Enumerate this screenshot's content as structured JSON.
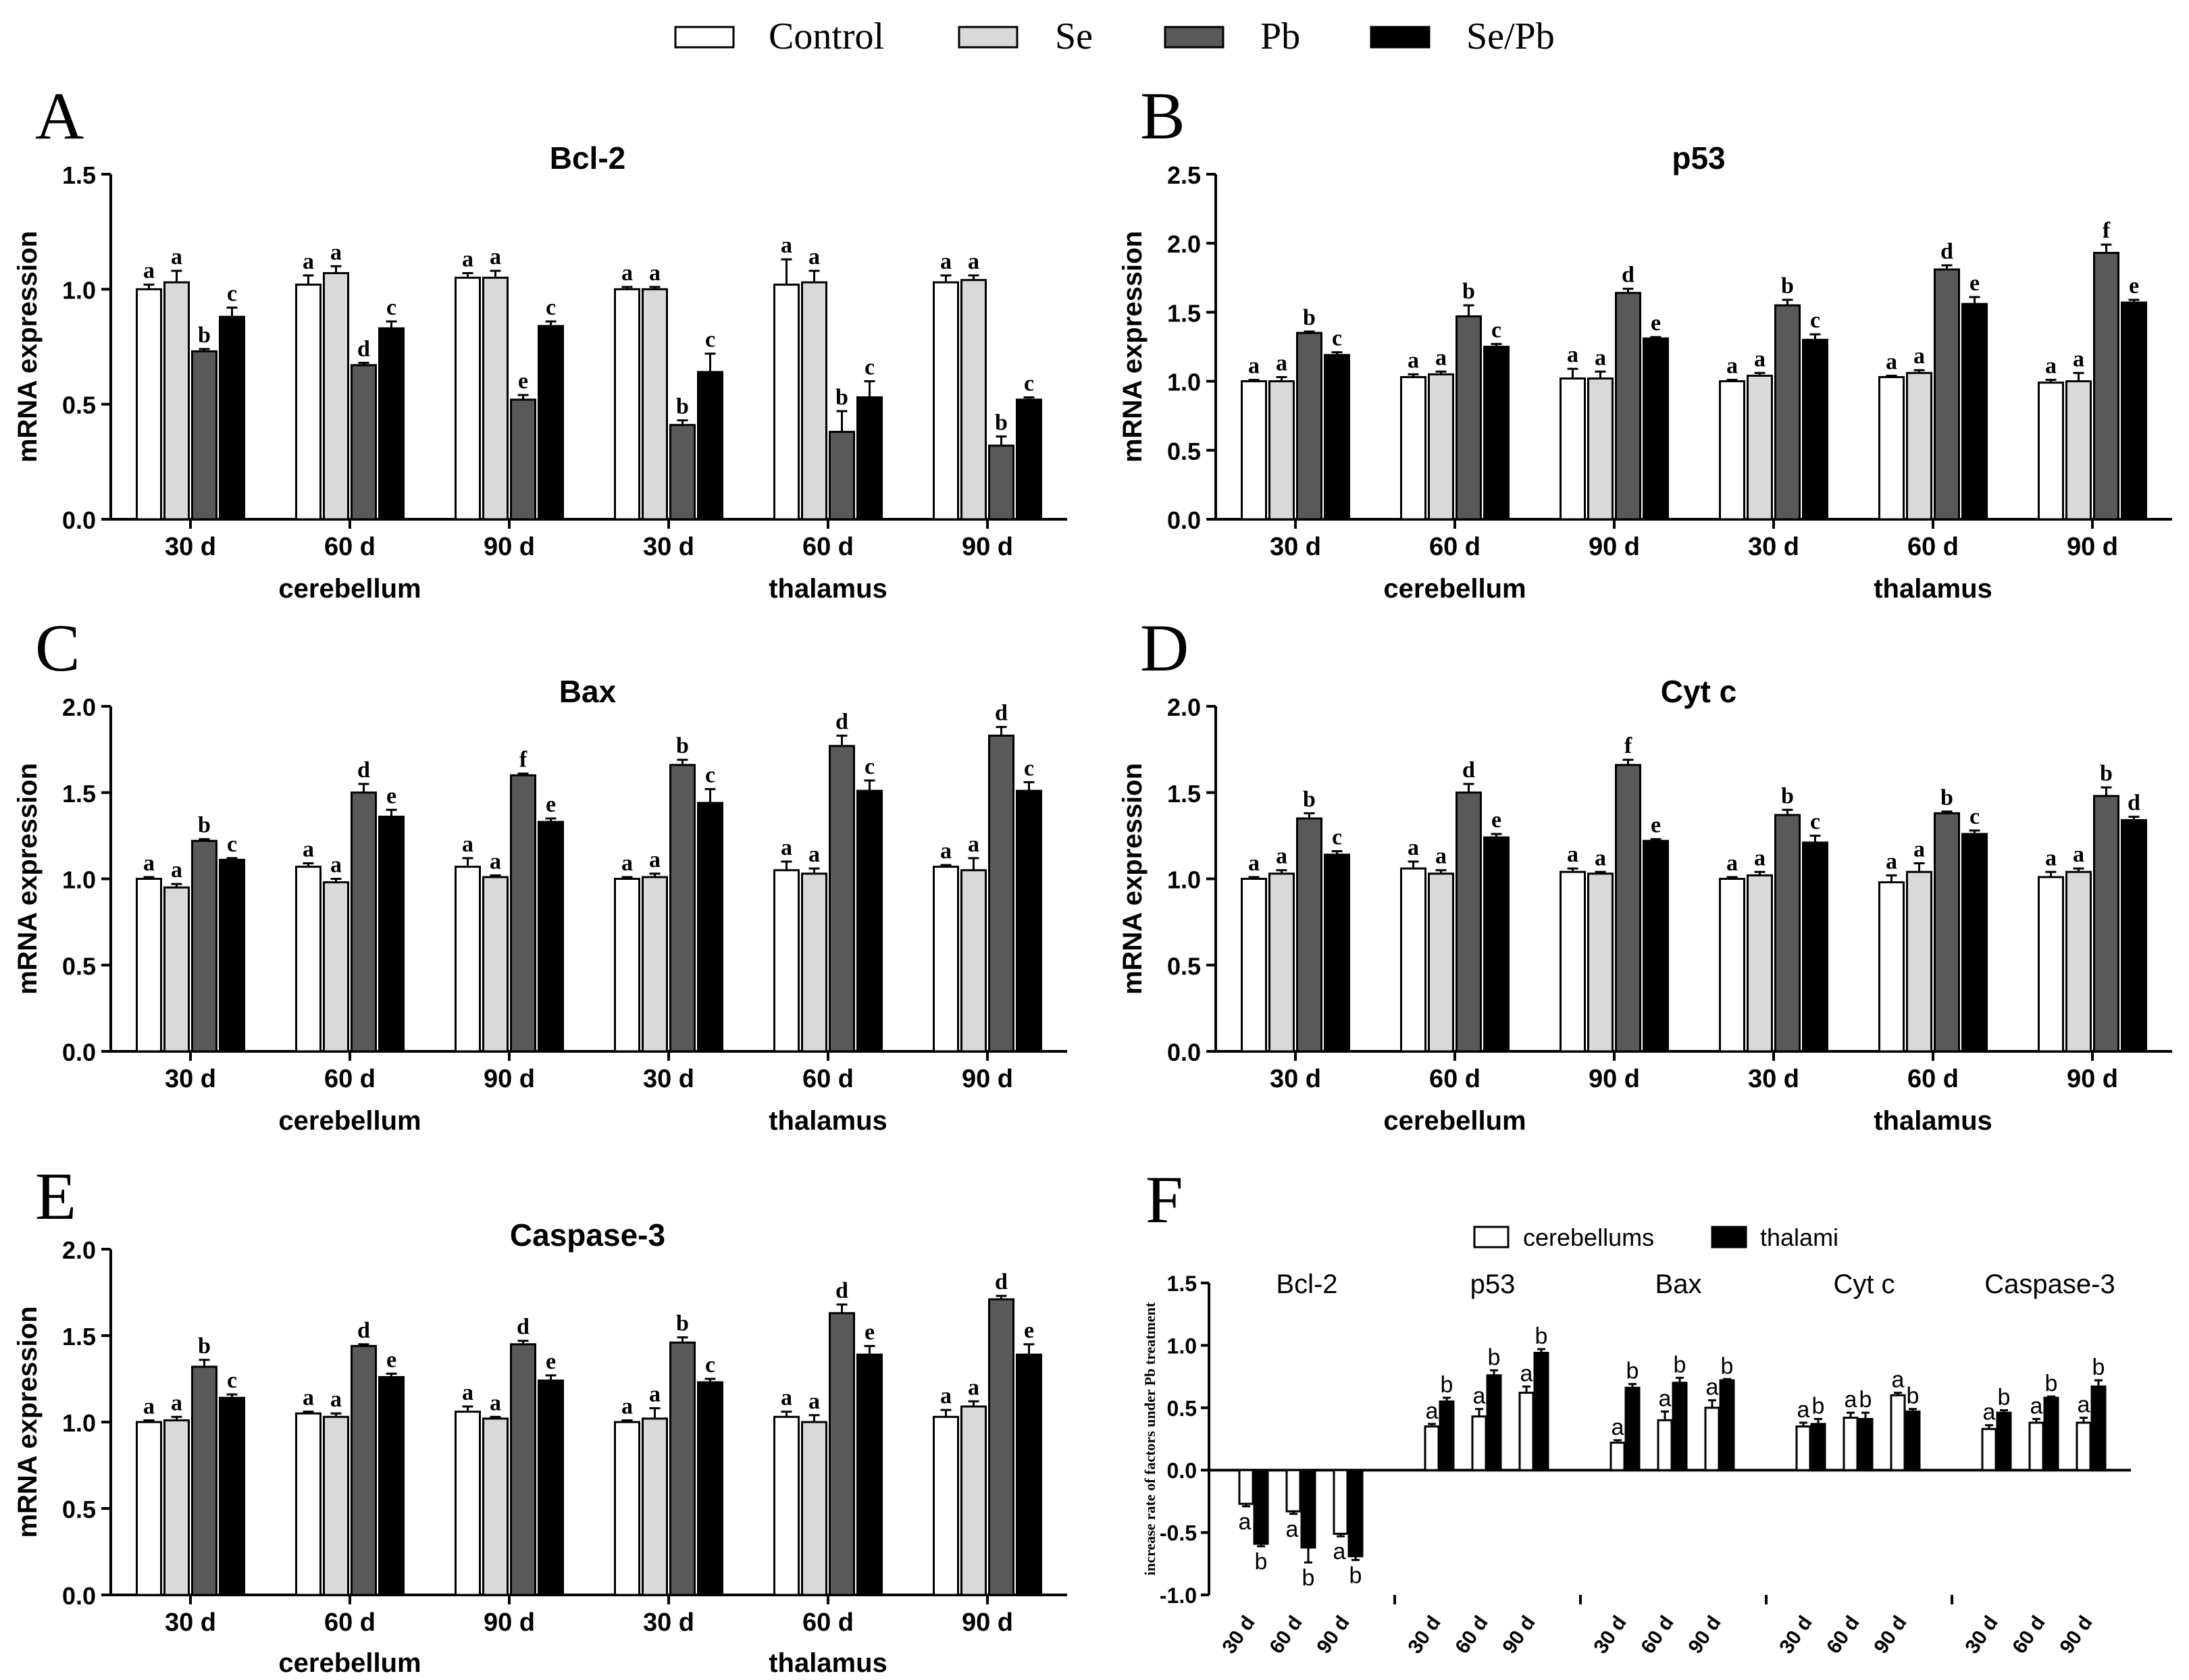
{
  "legend": {
    "items": [
      {
        "label": "Control",
        "color": "#ffffff"
      },
      {
        "label": "Se",
        "color": "#d9d9d9"
      },
      {
        "label": "Pb",
        "color": "#595959"
      },
      {
        "label": "Se/Pb",
        "color": "#000000"
      }
    ]
  },
  "chart_data": [
    {
      "type": "bar",
      "letter": "A",
      "title": "Bcl-2",
      "ylabel": "mRNA expression",
      "ylim": [
        0,
        1.5
      ],
      "yticks": [
        "0.0",
        "0.5",
        "1.0",
        "1.5"
      ],
      "categories": [
        "30 d",
        "60 d",
        "90 d",
        "30 d",
        "60 d",
        "90 d"
      ],
      "groups": [
        "cerebellum",
        "thalamus"
      ],
      "series": [
        {
          "name": "Control",
          "values": [
            1.0,
            1.02,
            1.05,
            1.0,
            1.02,
            1.03
          ],
          "errors": [
            0.02,
            0.04,
            0.02,
            0.01,
            0.11,
            0.03
          ],
          "letters": [
            "a",
            "a",
            "a",
            "a",
            "a",
            "a"
          ]
        },
        {
          "name": "Se",
          "values": [
            1.03,
            1.07,
            1.05,
            1.0,
            1.03,
            1.04
          ],
          "errors": [
            0.05,
            0.03,
            0.03,
            0.01,
            0.05,
            0.02
          ],
          "letters": [
            "a",
            "a",
            "a",
            "a",
            "a",
            "a"
          ]
        },
        {
          "name": "Pb",
          "values": [
            0.73,
            0.67,
            0.52,
            0.41,
            0.38,
            0.32
          ],
          "errors": [
            0.01,
            0.01,
            0.02,
            0.02,
            0.09,
            0.04
          ],
          "letters": [
            "b",
            "d",
            "e",
            "b",
            "b",
            "b"
          ]
        },
        {
          "name": "Se/Pb",
          "values": [
            0.88,
            0.83,
            0.84,
            0.64,
            0.53,
            0.52
          ],
          "errors": [
            0.04,
            0.03,
            0.02,
            0.08,
            0.07,
            0.01
          ],
          "letters": [
            "c",
            "c",
            "c",
            "c",
            "c",
            "c"
          ]
        }
      ]
    },
    {
      "type": "bar",
      "letter": "B",
      "title": "p53",
      "ylabel": "mRNA expression",
      "ylim": [
        0,
        2.5
      ],
      "yticks": [
        "0.0",
        "0.5",
        "1.0",
        "1.5",
        "2.0",
        "2.5"
      ],
      "categories": [
        "30 d",
        "60 d",
        "90 d",
        "30 d",
        "60 d",
        "90 d"
      ],
      "groups": [
        "cerebellum",
        "thalamus"
      ],
      "series": [
        {
          "name": "Control",
          "values": [
            1.0,
            1.03,
            1.02,
            1.0,
            1.03,
            0.99
          ],
          "errors": [
            0.01,
            0.02,
            0.07,
            0.01,
            0.01,
            0.02
          ],
          "letters": [
            "a",
            "a",
            "a",
            "a",
            "a",
            "a"
          ]
        },
        {
          "name": "Se",
          "values": [
            1.0,
            1.05,
            1.02,
            1.04,
            1.06,
            1.0
          ],
          "errors": [
            0.03,
            0.02,
            0.05,
            0.02,
            0.02,
            0.06
          ],
          "letters": [
            "a",
            "a",
            "a",
            "a",
            "a",
            "a"
          ]
        },
        {
          "name": "Pb",
          "values": [
            1.35,
            1.47,
            1.64,
            1.55,
            1.81,
            1.93
          ],
          "errors": [
            0.01,
            0.08,
            0.03,
            0.04,
            0.03,
            0.06
          ],
          "letters": [
            "b",
            "b",
            "d",
            "b",
            "d",
            "f"
          ]
        },
        {
          "name": "Se/Pb",
          "values": [
            1.19,
            1.25,
            1.31,
            1.3,
            1.56,
            1.57
          ],
          "errors": [
            0.02,
            0.02,
            0.01,
            0.04,
            0.05,
            0.02
          ],
          "letters": [
            "c",
            "c",
            "e",
            "c",
            "e",
            "e"
          ]
        }
      ]
    },
    {
      "type": "bar",
      "letter": "C",
      "title": "Bax",
      "ylabel": "mRNA expression",
      "ylim": [
        0,
        2.0
      ],
      "yticks": [
        "0.0",
        "0.5",
        "1.0",
        "1.5",
        "2.0"
      ],
      "categories": [
        "30 d",
        "60 d",
        "90 d",
        "30 d",
        "60 d",
        "90 d"
      ],
      "groups": [
        "cerebellum",
        "thalamus"
      ],
      "series": [
        {
          "name": "Control",
          "values": [
            1.0,
            1.07,
            1.07,
            1.0,
            1.05,
            1.07
          ],
          "errors": [
            0.01,
            0.02,
            0.05,
            0.01,
            0.05,
            0.01
          ],
          "letters": [
            "a",
            "a",
            "a",
            "a",
            "a",
            "a"
          ]
        },
        {
          "name": "Se",
          "values": [
            0.95,
            0.98,
            1.01,
            1.01,
            1.03,
            1.05
          ],
          "errors": [
            0.02,
            0.02,
            0.01,
            0.02,
            0.03,
            0.07
          ],
          "letters": [
            "a",
            "a",
            "a",
            "a",
            "a",
            "a"
          ]
        },
        {
          "name": "Pb",
          "values": [
            1.22,
            1.5,
            1.6,
            1.66,
            1.77,
            1.83
          ],
          "errors": [
            0.01,
            0.05,
            0.01,
            0.03,
            0.06,
            0.05
          ],
          "letters": [
            "b",
            "d",
            "f",
            "b",
            "d",
            "d"
          ]
        },
        {
          "name": "Se/Pb",
          "values": [
            1.11,
            1.36,
            1.33,
            1.44,
            1.51,
            1.51
          ],
          "errors": [
            0.01,
            0.04,
            0.02,
            0.08,
            0.06,
            0.05
          ],
          "letters": [
            "c",
            "e",
            "e",
            "c",
            "c",
            "c"
          ]
        }
      ]
    },
    {
      "type": "bar",
      "letter": "D",
      "title": "Cyt c",
      "ylabel": "mRNA expression",
      "ylim": [
        0,
        2.0
      ],
      "yticks": [
        "0.0",
        "0.5",
        "1.0",
        "1.5",
        "2.0"
      ],
      "categories": [
        "30 d",
        "60 d",
        "90 d",
        "30 d",
        "60 d",
        "90 d"
      ],
      "groups": [
        "cerebellum",
        "thalamus"
      ],
      "series": [
        {
          "name": "Control",
          "values": [
            1.0,
            1.06,
            1.04,
            1.0,
            0.98,
            1.01
          ],
          "errors": [
            0.01,
            0.04,
            0.02,
            0.01,
            0.04,
            0.03
          ],
          "letters": [
            "a",
            "a",
            "a",
            "a",
            "a",
            "a"
          ]
        },
        {
          "name": "Se",
          "values": [
            1.03,
            1.03,
            1.03,
            1.02,
            1.04,
            1.04
          ],
          "errors": [
            0.02,
            0.02,
            0.01,
            0.02,
            0.05,
            0.02
          ],
          "letters": [
            "a",
            "a",
            "a",
            "a",
            "a",
            "a"
          ]
        },
        {
          "name": "Pb",
          "values": [
            1.35,
            1.5,
            1.66,
            1.37,
            1.38,
            1.48
          ],
          "errors": [
            0.03,
            0.05,
            0.03,
            0.03,
            0.01,
            0.05
          ],
          "letters": [
            "b",
            "d",
            "f",
            "b",
            "b",
            "b"
          ]
        },
        {
          "name": "Se/Pb",
          "values": [
            1.14,
            1.24,
            1.22,
            1.21,
            1.26,
            1.34
          ],
          "errors": [
            0.02,
            0.02,
            0.01,
            0.04,
            0.02,
            0.02
          ],
          "letters": [
            "c",
            "e",
            "e",
            "c",
            "c",
            "d"
          ]
        }
      ]
    },
    {
      "type": "bar",
      "letter": "E",
      "title": "Caspase-3",
      "ylabel": "mRNA expression",
      "ylim": [
        0,
        2.0
      ],
      "yticks": [
        "0.0",
        "0.5",
        "1.0",
        "1.5",
        "2.0"
      ],
      "categories": [
        "30 d",
        "60 d",
        "90 d",
        "30 d",
        "60 d",
        "90 d"
      ],
      "groups": [
        "cerebellum",
        "thalamus"
      ],
      "series": [
        {
          "name": "Control",
          "values": [
            1.0,
            1.05,
            1.06,
            1.0,
            1.03,
            1.03
          ],
          "errors": [
            0.01,
            0.01,
            0.03,
            0.01,
            0.03,
            0.04
          ],
          "letters": [
            "a",
            "a",
            "a",
            "a",
            "a",
            "a"
          ]
        },
        {
          "name": "Se",
          "values": [
            1.01,
            1.03,
            1.02,
            1.02,
            1.0,
            1.09
          ],
          "errors": [
            0.02,
            0.02,
            0.01,
            0.06,
            0.04,
            0.03
          ],
          "letters": [
            "a",
            "a",
            "a",
            "a",
            "a",
            "a"
          ]
        },
        {
          "name": "Pb",
          "values": [
            1.32,
            1.44,
            1.45,
            1.46,
            1.63,
            1.71
          ],
          "errors": [
            0.04,
            0.01,
            0.02,
            0.03,
            0.05,
            0.02
          ],
          "letters": [
            "b",
            "d",
            "d",
            "b",
            "d",
            "d"
          ]
        },
        {
          "name": "Se/Pb",
          "values": [
            1.14,
            1.26,
            1.24,
            1.23,
            1.39,
            1.39
          ],
          "errors": [
            0.02,
            0.02,
            0.03,
            0.02,
            0.05,
            0.06
          ],
          "letters": [
            "c",
            "e",
            "e",
            "c",
            "e",
            "e"
          ]
        }
      ]
    },
    {
      "type": "bar",
      "letter": "F",
      "ylabel": "increase rate of factors under Pb treatment",
      "ylim": [
        -1.0,
        1.5
      ],
      "yticks": [
        "-1.0",
        "-0.5",
        "0.0",
        "0.5",
        "1.0",
        "1.5"
      ],
      "legend": [
        "cerebellums",
        "thalami"
      ],
      "groups": [
        "Bcl-2",
        "p53",
        "Bax",
        "Cyt c",
        "Caspase-3"
      ],
      "categories": [
        "30 d",
        "60 d",
        "90 d"
      ],
      "series": [
        {
          "name": "cerebellums",
          "values": [
            [
              -0.27,
              -0.33,
              -0.51
            ],
            [
              0.35,
              0.43,
              0.62
            ],
            [
              0.22,
              0.4,
              0.5
            ],
            [
              0.35,
              0.42,
              0.6
            ],
            [
              0.33,
              0.38,
              0.38
            ]
          ],
          "errors": [
            [
              0.02,
              0.02,
              0.02
            ],
            [
              0.02,
              0.06,
              0.05
            ],
            [
              0.02,
              0.07,
              0.06
            ],
            [
              0.03,
              0.04,
              0.02
            ],
            [
              0.03,
              0.03,
              0.04
            ]
          ],
          "letters": [
            [
              "a",
              "a",
              "a"
            ],
            [
              "a",
              "a",
              "a"
            ],
            [
              "a",
              "a",
              "a"
            ],
            [
              "a",
              "a",
              "a"
            ],
            [
              "a",
              "a",
              "a"
            ]
          ]
        },
        {
          "name": "thalami",
          "values": [
            [
              -0.59,
              -0.62,
              -0.69
            ],
            [
              0.55,
              0.76,
              0.94
            ],
            [
              0.66,
              0.7,
              0.72
            ],
            [
              0.37,
              0.41,
              0.47
            ],
            [
              0.46,
              0.58,
              0.67
            ]
          ],
          "errors": [
            [
              0.02,
              0.12,
              0.03
            ],
            [
              0.03,
              0.04,
              0.03
            ],
            [
              0.03,
              0.04,
              0.01
            ],
            [
              0.04,
              0.05,
              0.02
            ],
            [
              0.02,
              0.01,
              0.05
            ]
          ],
          "letters": [
            [
              "b",
              "b",
              "b"
            ],
            [
              "b",
              "b",
              "b"
            ],
            [
              "b",
              "b",
              "b"
            ],
            [
              "b",
              "b",
              "b"
            ],
            [
              "b",
              "b",
              "b"
            ]
          ]
        }
      ]
    }
  ]
}
